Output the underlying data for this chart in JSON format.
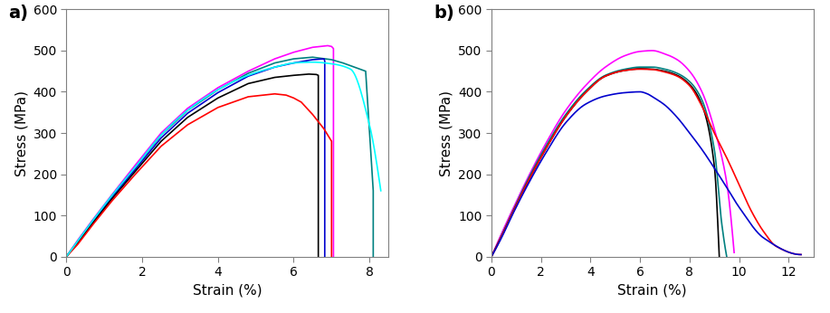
{
  "subplot_a": {
    "label": "a)",
    "xlabel": "Strain (%)",
    "ylabel": "Stress (MPa)",
    "xlim": [
      0,
      8.5
    ],
    "ylim": [
      0,
      600
    ],
    "xticks": [
      0,
      2,
      4,
      6,
      8
    ],
    "yticks": [
      0,
      100,
      200,
      300,
      400,
      500,
      600
    ],
    "curves": [
      {
        "color": "#FF00FF",
        "points_x": [
          0,
          0.3,
          0.7,
          1.2,
          1.8,
          2.5,
          3.2,
          4.0,
          4.8,
          5.5,
          6.0,
          6.5,
          6.9,
          7.0,
          7.05,
          7.05
        ],
        "points_y": [
          0,
          40,
          90,
          150,
          220,
          300,
          360,
          410,
          450,
          480,
          496,
          508,
          512,
          510,
          505,
          0
        ]
      },
      {
        "color": "#008080",
        "points_x": [
          0,
          0.3,
          0.7,
          1.2,
          1.8,
          2.5,
          3.2,
          4.0,
          4.8,
          5.5,
          6.0,
          6.5,
          7.0,
          7.3,
          7.6,
          7.9,
          8.1,
          8.1
        ],
        "points_y": [
          0,
          38,
          88,
          148,
          215,
          295,
          355,
          405,
          445,
          470,
          480,
          484,
          478,
          470,
          460,
          450,
          160,
          0
        ]
      },
      {
        "color": "#0000CD",
        "points_x": [
          0,
          0.3,
          0.7,
          1.2,
          1.8,
          2.5,
          3.2,
          4.0,
          4.8,
          5.5,
          6.0,
          6.5,
          6.8,
          6.82,
          6.82
        ],
        "points_y": [
          0,
          36,
          85,
          145,
          210,
          288,
          348,
          398,
          438,
          460,
          470,
          478,
          480,
          475,
          0
        ]
      },
      {
        "color": "#000000",
        "points_x": [
          0,
          0.3,
          0.7,
          1.2,
          1.8,
          2.5,
          3.2,
          4.0,
          4.8,
          5.5,
          6.0,
          6.4,
          6.6,
          6.65,
          6.65
        ],
        "points_y": [
          0,
          34,
          82,
          140,
          205,
          280,
          338,
          385,
          420,
          435,
          440,
          443,
          442,
          440,
          0
        ]
      },
      {
        "color": "#FF0000",
        "points_x": [
          0,
          0.3,
          0.7,
          1.2,
          1.8,
          2.5,
          3.2,
          4.0,
          4.8,
          5.5,
          5.8,
          6.0,
          6.2,
          6.5,
          6.8,
          7.0,
          7.0
        ],
        "points_y": [
          0,
          30,
          78,
          135,
          198,
          268,
          320,
          362,
          388,
          395,
          392,
          385,
          375,
          345,
          310,
          280,
          0
        ]
      },
      {
        "color": "#00FFFF",
        "points_x": [
          0,
          0.3,
          0.7,
          1.2,
          1.8,
          2.5,
          3.2,
          4.0,
          4.8,
          5.5,
          6.0,
          6.5,
          7.0,
          7.5,
          8.0,
          8.3
        ],
        "points_y": [
          0,
          38,
          88,
          148,
          215,
          295,
          355,
          405,
          440,
          460,
          470,
          472,
          468,
          455,
          320,
          160
        ]
      }
    ]
  },
  "subplot_b": {
    "label": "b)",
    "xlabel": "Strain (%)",
    "ylabel": "Stress (MPa)",
    "xlim": [
      0,
      13
    ],
    "ylim": [
      0,
      600
    ],
    "xticks": [
      0,
      2,
      4,
      6,
      8,
      10,
      12
    ],
    "yticks": [
      0,
      100,
      200,
      300,
      400,
      500,
      600
    ],
    "curves": [
      {
        "color": "#FF00FF",
        "points_x": [
          0,
          0.4,
          0.9,
          1.5,
          2.2,
          3.0,
          3.8,
          4.6,
          5.4,
          6.0,
          6.5,
          7.0,
          7.5,
          8.0,
          8.5,
          9.0,
          9.5,
          9.8
        ],
        "points_y": [
          0,
          55,
          120,
          195,
          275,
          355,
          415,
          460,
          488,
          498,
          500,
          492,
          478,
          450,
          400,
          310,
          180,
          10
        ]
      },
      {
        "color": "#008080",
        "points_x": [
          0,
          0.4,
          0.9,
          1.5,
          2.2,
          3.0,
          3.8,
          4.6,
          5.4,
          6.0,
          6.5,
          7.0,
          7.5,
          8.0,
          8.5,
          9.0,
          9.3,
          9.5
        ],
        "points_y": [
          0,
          50,
          115,
          190,
          268,
          345,
          402,
          440,
          455,
          460,
          460,
          455,
          445,
          425,
          380,
          260,
          80,
          0
        ]
      },
      {
        "color": "#000000",
        "points_x": [
          0,
          0.4,
          0.9,
          1.5,
          2.2,
          3.0,
          3.8,
          4.6,
          5.4,
          6.0,
          6.5,
          7.0,
          7.5,
          8.0,
          8.5,
          9.0,
          9.2
        ],
        "points_y": [
          0,
          48,
          112,
          185,
          262,
          340,
          398,
          438,
          452,
          456,
          455,
          450,
          440,
          418,
          368,
          220,
          0
        ]
      },
      {
        "color": "#FF0000",
        "points_x": [
          0,
          0.4,
          0.9,
          1.5,
          2.2,
          3.0,
          3.8,
          4.6,
          5.4,
          6.0,
          6.5,
          7.0,
          7.5,
          8.0,
          8.5,
          9.0,
          9.5,
          10.0,
          10.5,
          11.0,
          11.5,
          12.5
        ],
        "points_y": [
          0,
          48,
          112,
          185,
          262,
          340,
          398,
          438,
          452,
          455,
          454,
          448,
          438,
          415,
          365,
          300,
          240,
          175,
          110,
          60,
          25,
          5
        ]
      },
      {
        "color": "#0000CD",
        "points_x": [
          0,
          0.4,
          0.9,
          1.5,
          2.2,
          3.0,
          3.8,
          4.6,
          5.4,
          6.0,
          6.3,
          6.5,
          7.0,
          7.5,
          8.0,
          8.5,
          9.0,
          9.5,
          10.0,
          11.0,
          12.5
        ],
        "points_y": [
          0,
          45,
          108,
          178,
          252,
          325,
          370,
          390,
          398,
          400,
          395,
          388,
          368,
          338,
          300,
          260,
          215,
          168,
          120,
          45,
          5
        ]
      }
    ]
  }
}
